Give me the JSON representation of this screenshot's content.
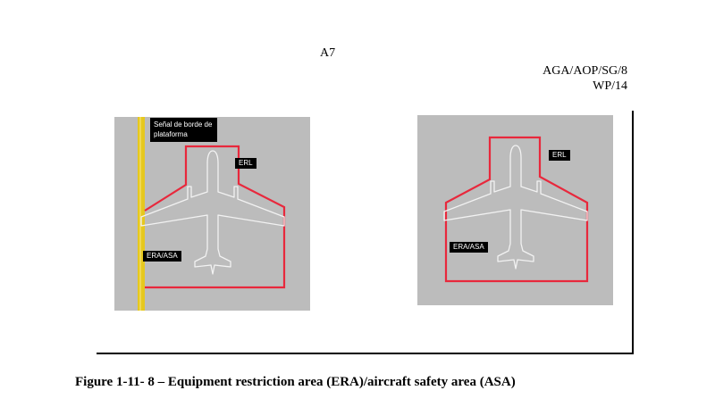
{
  "header": {
    "page_number": "A7",
    "doc_ref_line1": "AGA/AOP/SG/8",
    "doc_ref_line2": "WP/14"
  },
  "figure_left": {
    "edge_label_line1": "Señal de borde de",
    "edge_label_line2": "plataforma",
    "erl_label": "ERL",
    "era_label": "ERA/ASA"
  },
  "figure_right": {
    "erl_label": "ERL",
    "era_label": "ERA/ASA"
  },
  "caption": "Figure 1-11- 8 – Equipment restriction area (ERA)/aircraft safety area (ASA)",
  "colors": {
    "apron": "#bcbcbc",
    "restriction_line": "#e8283c",
    "edge_marking": "#e6c81e",
    "aircraft_outline": "#f2f2f2"
  }
}
